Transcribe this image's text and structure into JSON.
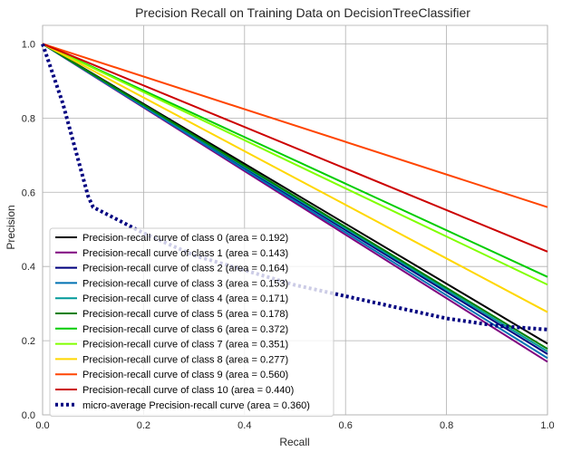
{
  "chart_data": {
    "type": "line",
    "title": "Precision Recall on Training Data on DecisionTreeClassifier",
    "xlabel": "Recall",
    "ylabel": "Precision",
    "xlim": [
      0.0,
      1.0
    ],
    "ylim": [
      0.0,
      1.05
    ],
    "xticks": [
      "0.0",
      "0.2",
      "0.4",
      "0.6",
      "0.8",
      "1.0"
    ],
    "yticks": [
      "0.0",
      "0.2",
      "0.4",
      "0.6",
      "0.8",
      "1.0"
    ],
    "xtick_values": [
      0.0,
      0.2,
      0.4,
      0.6,
      0.8,
      1.0
    ],
    "ytick_values": [
      0.0,
      0.2,
      0.4,
      0.6,
      0.8,
      1.0
    ],
    "grid": true,
    "legend_position": "lower-left",
    "series": [
      {
        "name": "Precision-recall curve of class 0 (area = 0.192)",
        "color": "#000000",
        "style": "solid",
        "x": [
          0,
          1
        ],
        "y": [
          1.0,
          0.192
        ]
      },
      {
        "name": "Precision-recall curve of class 1 (area = 0.143)",
        "color": "#7f007f",
        "style": "solid",
        "x": [
          0,
          1
        ],
        "y": [
          1.0,
          0.143
        ]
      },
      {
        "name": "Precision-recall curve of class 2 (area = 0.164)",
        "color": "#00007f",
        "style": "solid",
        "x": [
          0,
          1
        ],
        "y": [
          1.0,
          0.164
        ]
      },
      {
        "name": "Precision-recall curve of class 3 (area = 0.153)",
        "color": "#0072b2",
        "style": "solid",
        "x": [
          0,
          1
        ],
        "y": [
          1.0,
          0.153
        ]
      },
      {
        "name": "Precision-recall curve of class 4 (area = 0.171)",
        "color": "#009999",
        "style": "solid",
        "x": [
          0,
          1
        ],
        "y": [
          1.0,
          0.171
        ]
      },
      {
        "name": "Precision-recall curve of class 5 (area = 0.178)",
        "color": "#008000",
        "style": "solid",
        "x": [
          0,
          1
        ],
        "y": [
          1.0,
          0.178
        ]
      },
      {
        "name": "Precision-recall curve of class 6 (area = 0.372)",
        "color": "#00cc00",
        "style": "solid",
        "x": [
          0,
          1
        ],
        "y": [
          1.0,
          0.372
        ]
      },
      {
        "name": "Precision-recall curve of class 7 (area = 0.351)",
        "color": "#80ff00",
        "style": "solid",
        "x": [
          0,
          1
        ],
        "y": [
          1.0,
          0.351
        ]
      },
      {
        "name": "Precision-recall curve of class 8 (area = 0.277)",
        "color": "#ffd700",
        "style": "solid",
        "x": [
          0,
          1
        ],
        "y": [
          1.0,
          0.277
        ]
      },
      {
        "name": "Precision-recall curve of class 9 (area = 0.560)",
        "color": "#ff4500",
        "style": "solid",
        "x": [
          0,
          1
        ],
        "y": [
          1.0,
          0.56
        ]
      },
      {
        "name": "Precision-recall curve of class 10 (area = 0.440)",
        "color": "#cc0000",
        "style": "solid",
        "x": [
          0,
          1
        ],
        "y": [
          1.0,
          0.44
        ]
      },
      {
        "name": "micro-average Precision-recall curve (area = 0.360)",
        "color": "#000080",
        "style": "dotted",
        "x": [
          0.0,
          0.01,
          0.02,
          0.04,
          0.06,
          0.08,
          0.09,
          0.1,
          0.2,
          0.3,
          0.4,
          0.5,
          0.6,
          0.7,
          0.8,
          0.9,
          1.0
        ],
        "y": [
          1.0,
          0.96,
          0.92,
          0.84,
          0.74,
          0.64,
          0.59,
          0.56,
          0.49,
          0.43,
          0.39,
          0.35,
          0.32,
          0.29,
          0.26,
          0.24,
          0.23
        ]
      }
    ]
  }
}
